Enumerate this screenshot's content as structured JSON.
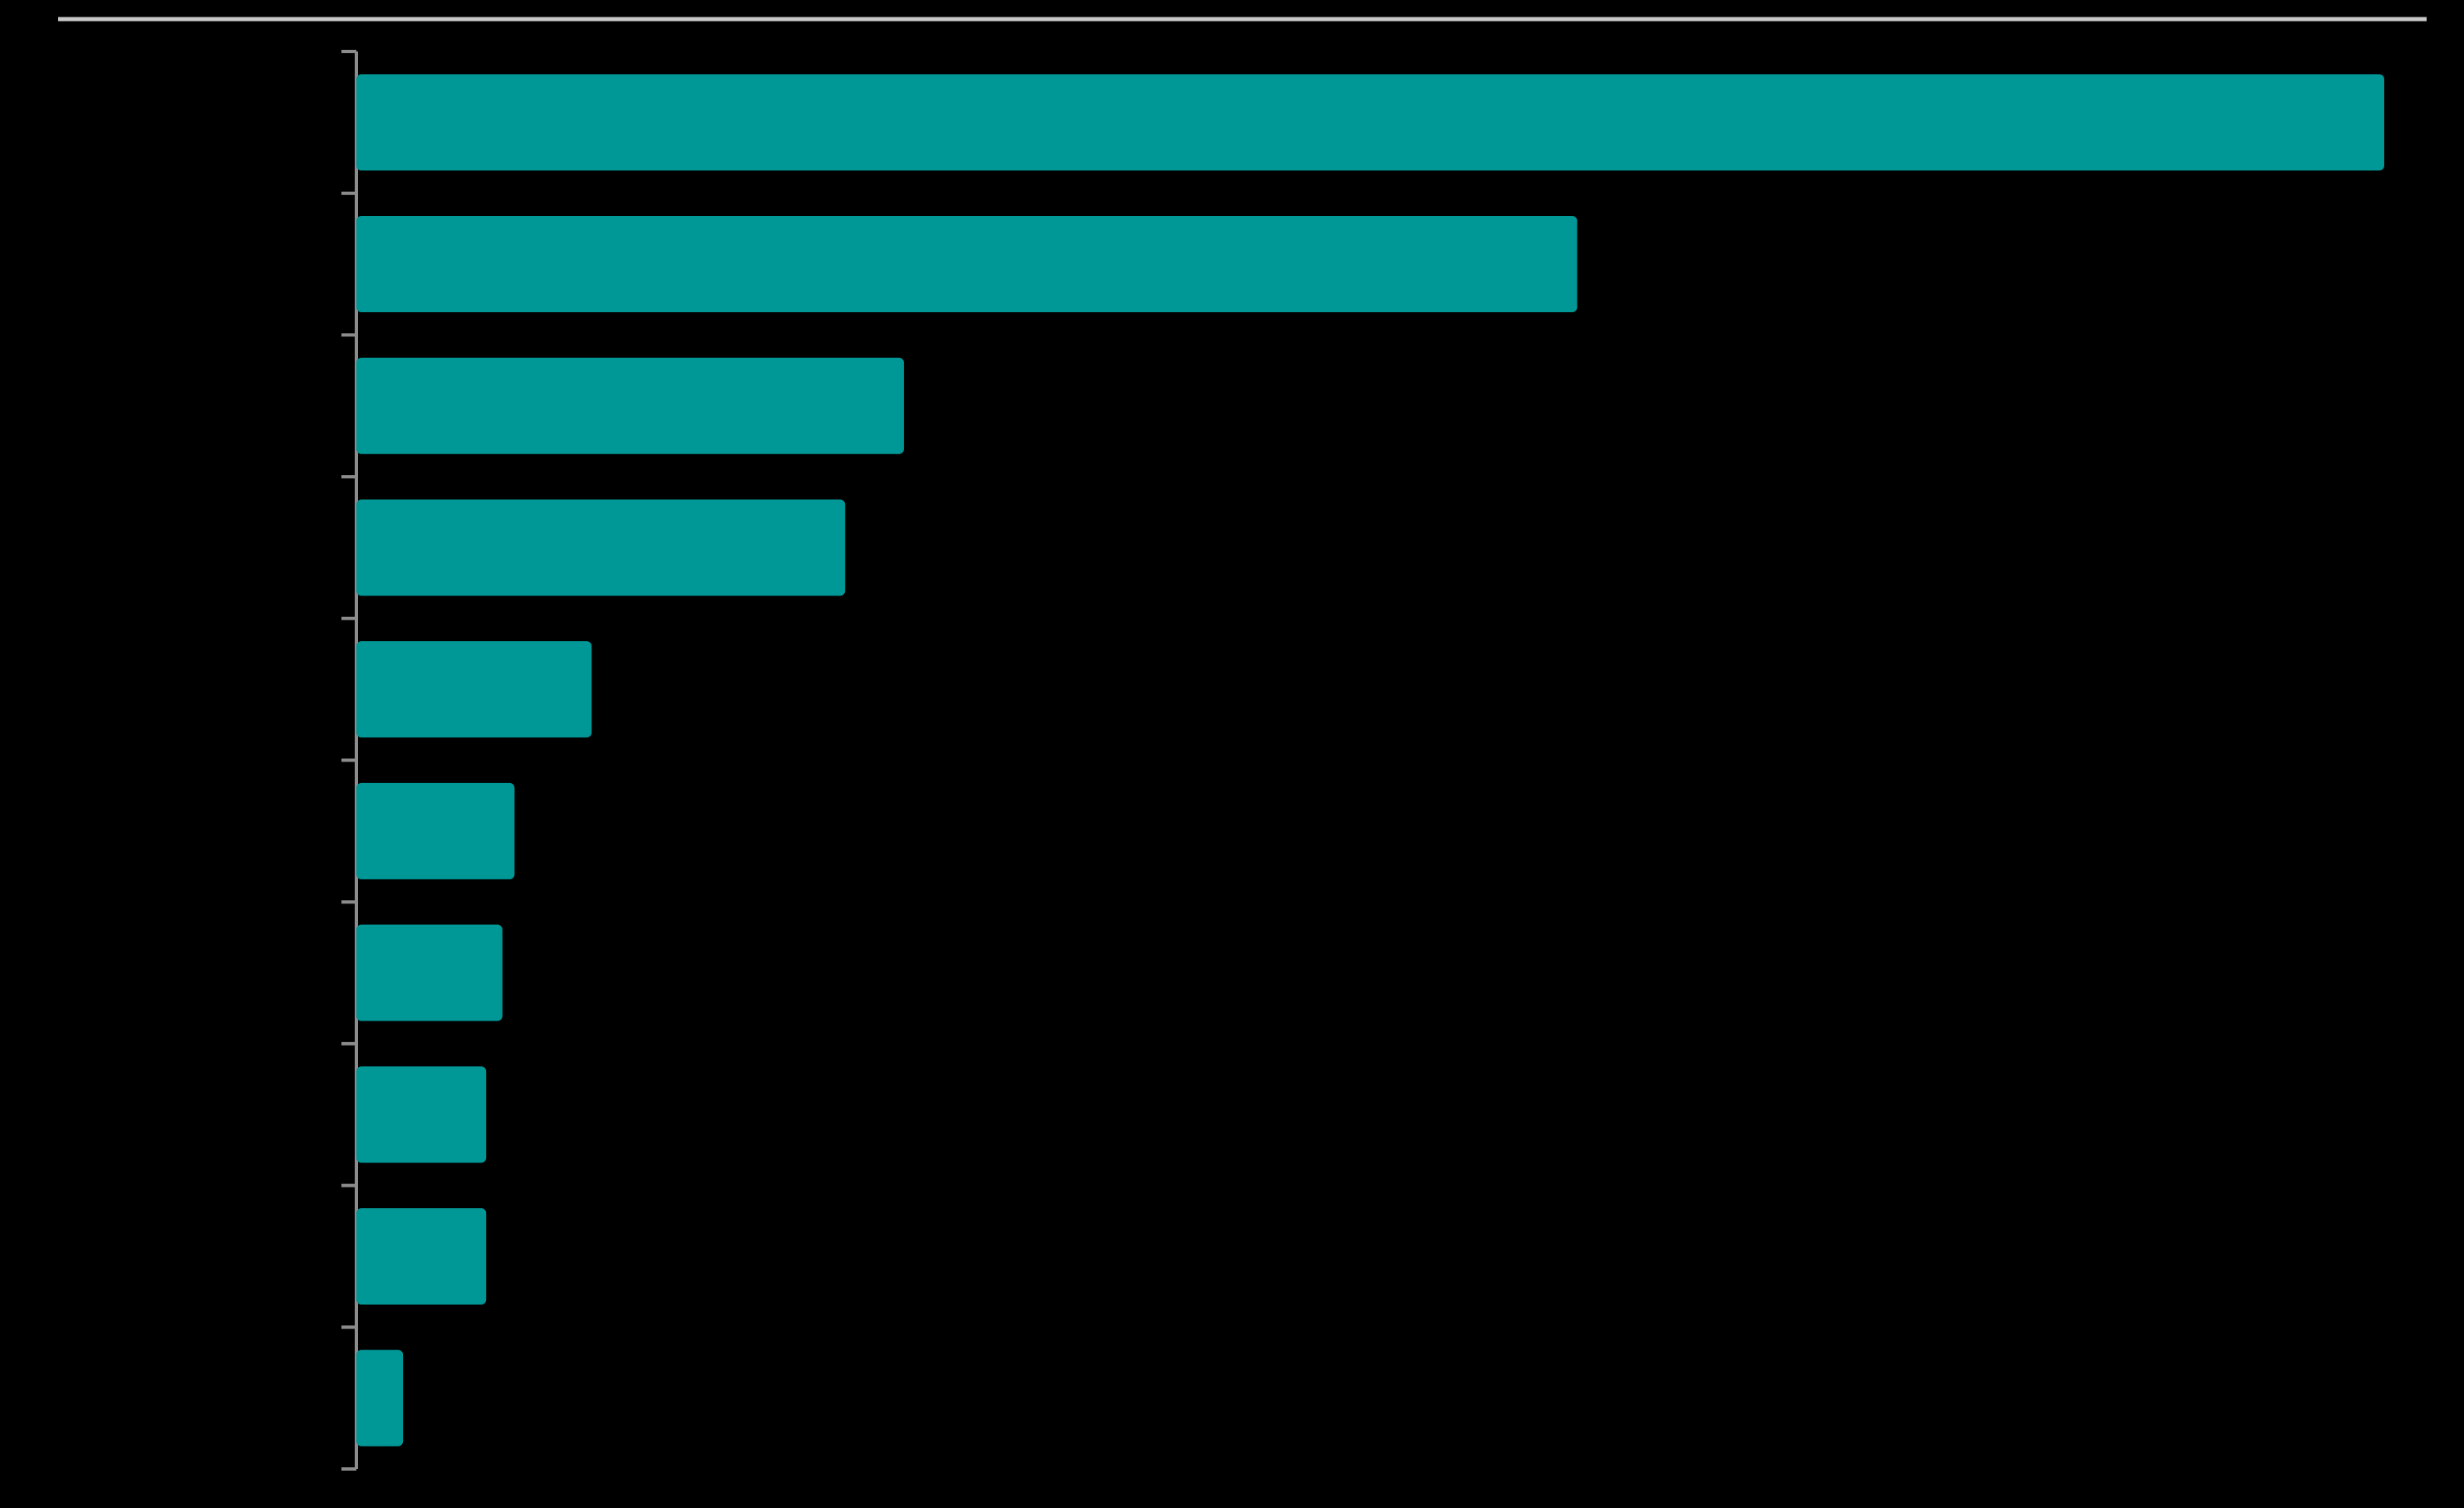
{
  "chart_data": {
    "type": "bar",
    "orientation": "horizontal",
    "categories": [
      null,
      null,
      null,
      null,
      null,
      null,
      null,
      null,
      null,
      null
    ],
    "values": [
      100,
      60.2,
      27.0,
      24.1,
      11.6,
      7.8,
      7.2,
      6.4,
      6.4,
      2.3
    ],
    "color": "#009797",
    "xlim": [
      0,
      100
    ]
  }
}
